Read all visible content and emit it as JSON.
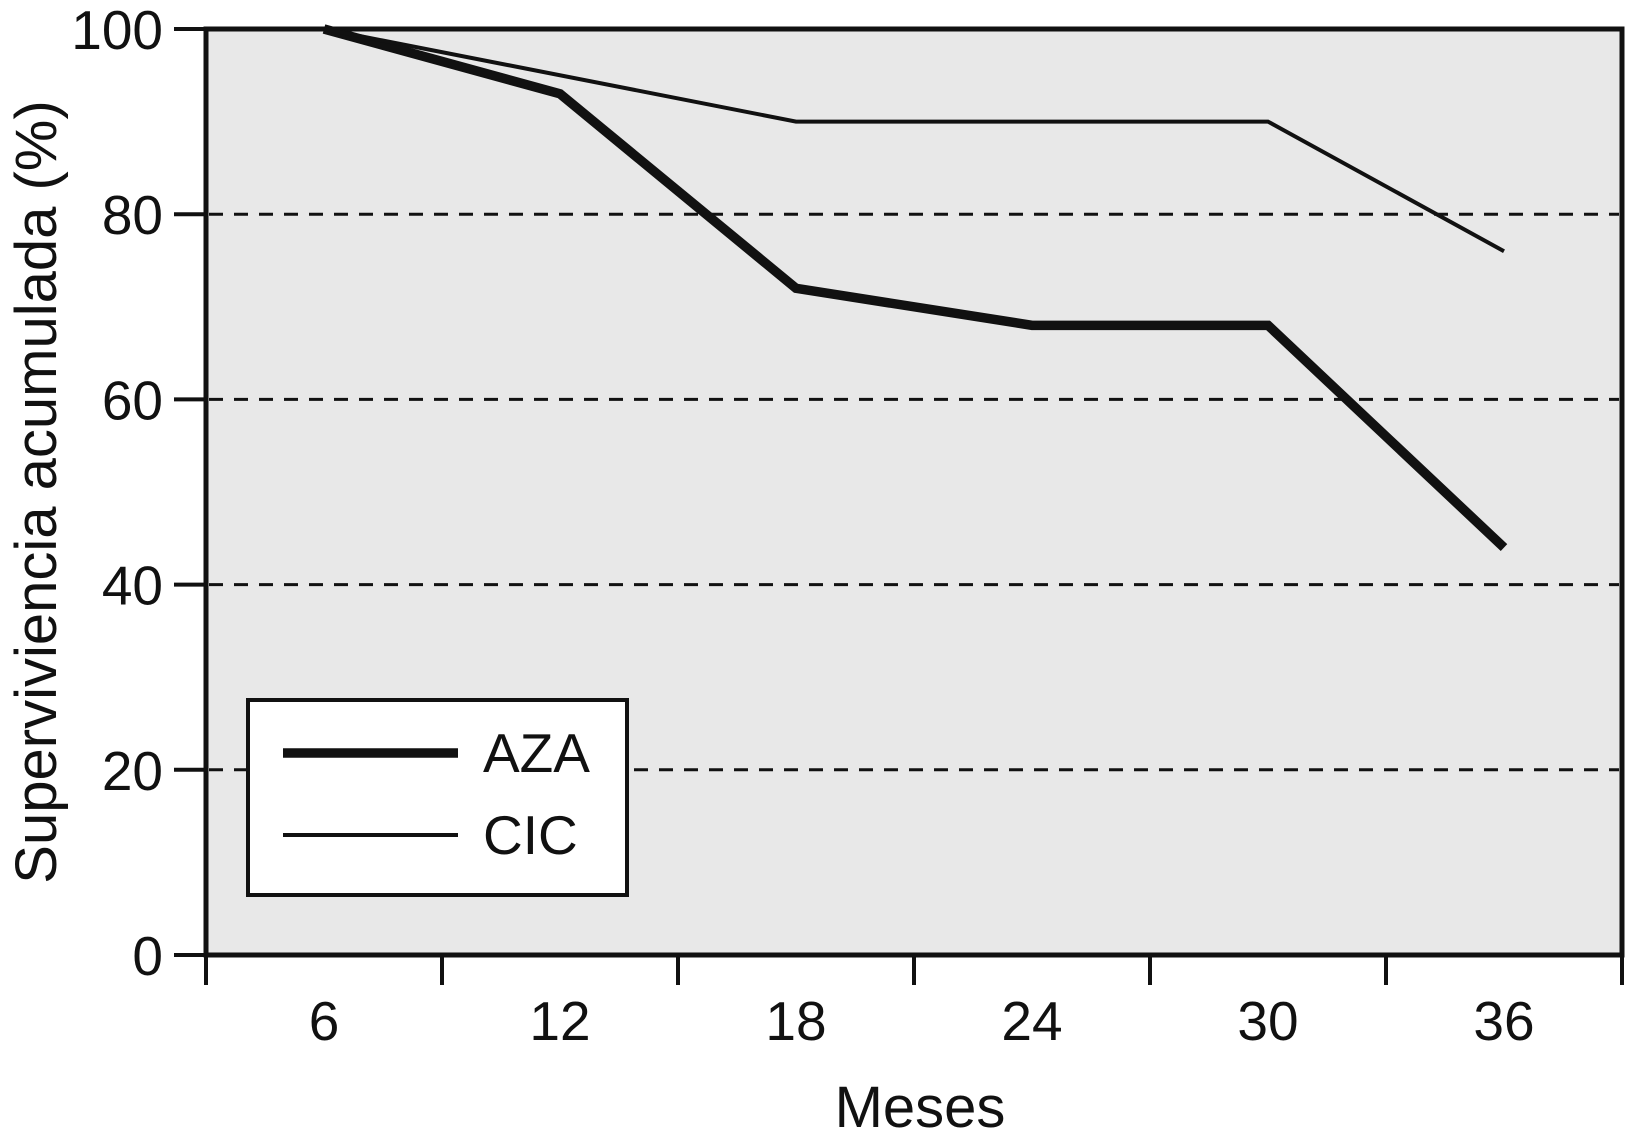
{
  "figure": {
    "background": "#ffffff",
    "plot_background": "#e8e8e8",
    "line_color": "#111111",
    "grid_color": "#111111",
    "legend_background": "#ffffff"
  },
  "chart_data": {
    "type": "line",
    "title": "",
    "xlabel": "Meses",
    "ylabel": "Superviviencia acumulada (%)",
    "x_tick_labels": [
      6,
      12,
      18,
      24,
      30,
      36
    ],
    "x_tick_step": 6,
    "y_ticks": [
      0,
      20,
      40,
      60,
      80,
      100
    ],
    "ylim": [
      0,
      100
    ],
    "grid_y_values": [
      20,
      40,
      60,
      80
    ],
    "grid_style": "dashed",
    "legend": {
      "position": "lower-left",
      "entries": [
        {
          "label": "AZA",
          "line": "thick"
        },
        {
          "label": "CIC",
          "line": "thin"
        }
      ]
    },
    "series": [
      {
        "name": "AZA",
        "stroke_width": 9.5,
        "points": [
          [
            6,
            100
          ],
          [
            12,
            93
          ],
          [
            18,
            72
          ],
          [
            24,
            68
          ],
          [
            30,
            68
          ],
          [
            36,
            44
          ]
        ]
      },
      {
        "name": "CIC",
        "stroke_width": 4,
        "points": [
          [
            6,
            100
          ],
          [
            18,
            90
          ],
          [
            30,
            90
          ],
          [
            36,
            76
          ]
        ]
      }
    ]
  }
}
